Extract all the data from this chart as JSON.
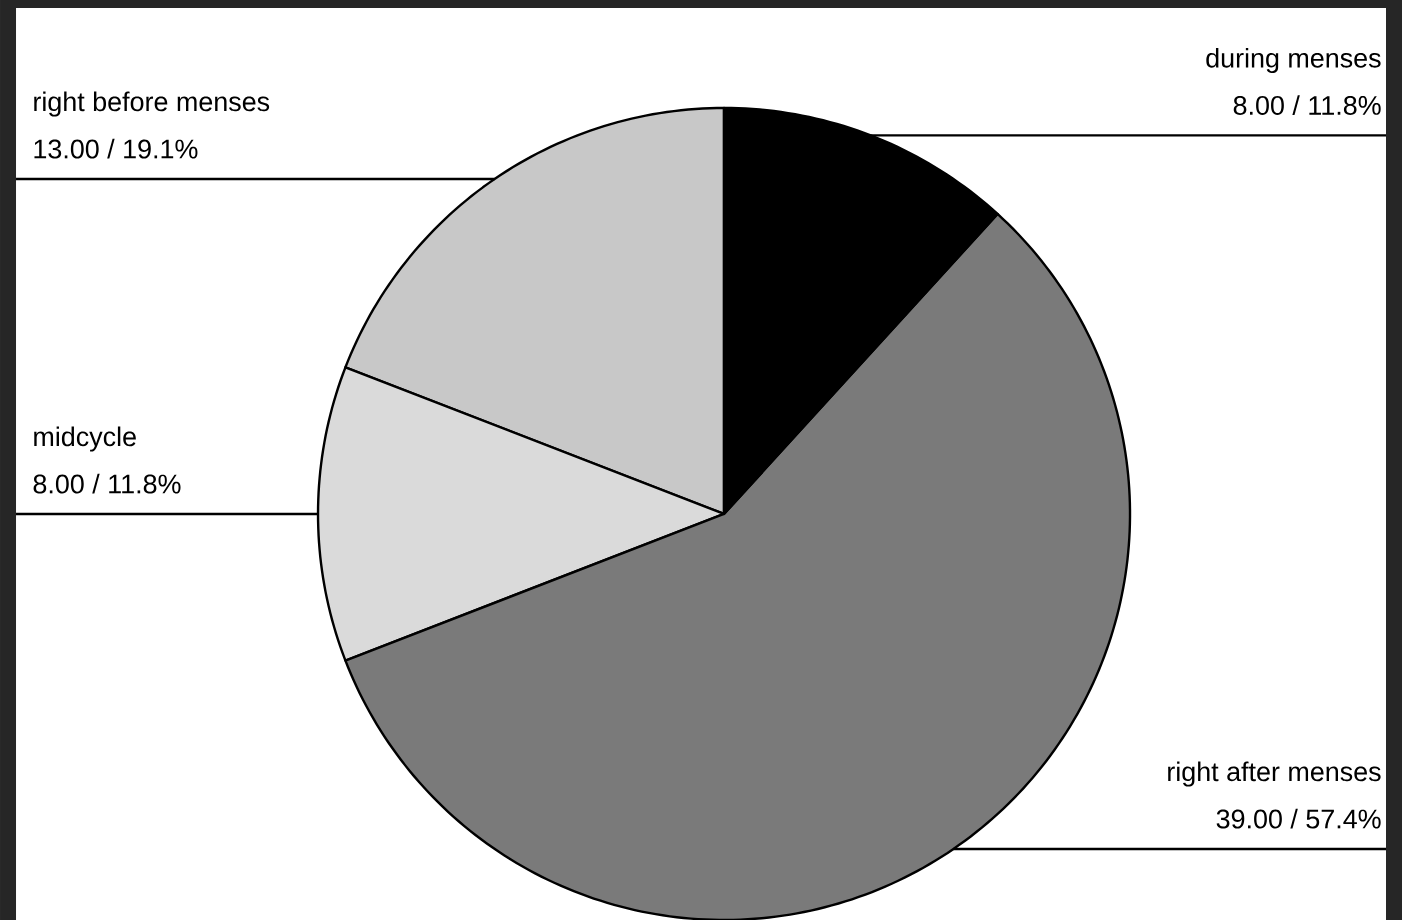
{
  "chart_data": {
    "type": "pie",
    "categories": [
      "right before menses",
      "midcycle",
      "right after menses",
      "during menses"
    ],
    "values": [
      13,
      8,
      39,
      8
    ],
    "value_labels": [
      "13.00 / 19.1%",
      "8.00 / 11.8%",
      "39.00 / 57.4%",
      "8.00 / 11.8%"
    ],
    "colors": [
      "#c8c8c8",
      "#dadada",
      "#7a7a7a",
      "#000000"
    ]
  }
}
